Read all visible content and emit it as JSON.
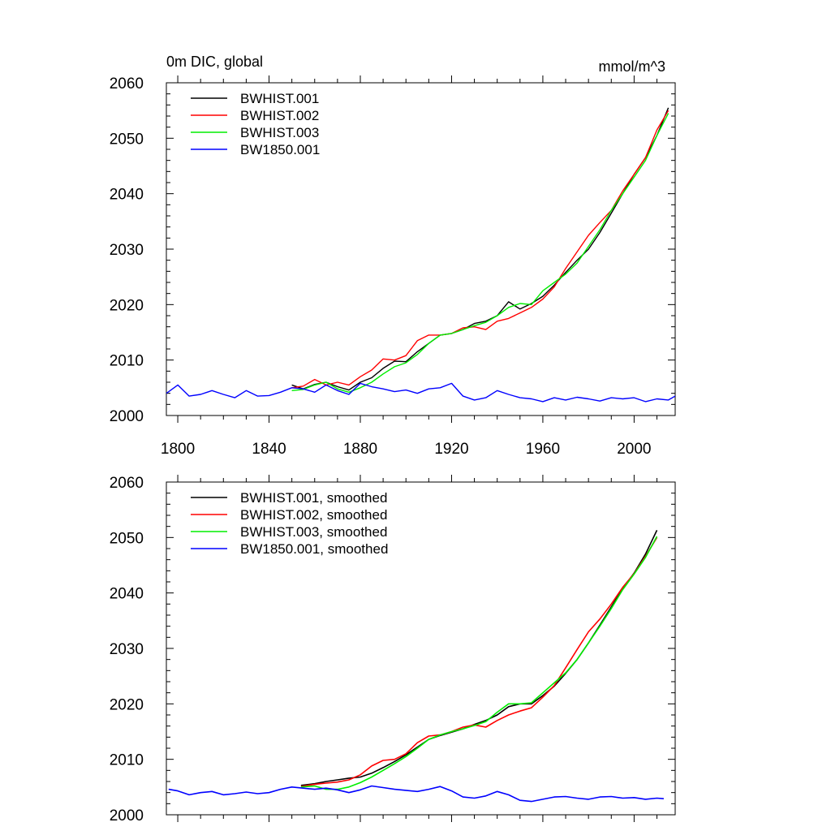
{
  "chart_data": [
    {
      "type": "line",
      "title_left": "0m DIC, global",
      "title_right": "mmol/m^3",
      "xlim": [
        1795,
        2018
      ],
      "ylim": [
        2000,
        2060
      ],
      "xticks": [
        1800,
        1840,
        1880,
        1920,
        1960,
        2000
      ],
      "xtick_labels": [
        "1800",
        "1840",
        "1880",
        "1920",
        "1960",
        "2000"
      ],
      "yticks": [
        2000,
        2010,
        2020,
        2030,
        2040,
        2050,
        2060
      ],
      "ytick_labels": [
        "2000",
        "2010",
        "2020",
        "2030",
        "2040",
        "2050",
        "2060"
      ],
      "legend": "top-left",
      "series": [
        {
          "name": "BWHIST.001",
          "color": "#000000",
          "x": [
            1850,
            1855,
            1860,
            1865,
            1870,
            1875,
            1880,
            1885,
            1890,
            1895,
            1900,
            1905,
            1910,
            1915,
            1920,
            1925,
            1930,
            1935,
            1940,
            1945,
            1950,
            1955,
            1960,
            1965,
            1970,
            1975,
            1980,
            1985,
            1990,
            1995,
            2000,
            2005,
            2010,
            2015
          ],
          "y": [
            2005.5,
            2004.8,
            2005.6,
            2006.0,
            2005.2,
            2004.6,
            2006.0,
            2006.8,
            2008.5,
            2009.8,
            2009.7,
            2011.5,
            2013.0,
            2014.5,
            2014.8,
            2015.5,
            2016.6,
            2017.0,
            2018.0,
            2020.5,
            2019.2,
            2020.2,
            2021.5,
            2023.5,
            2025.8,
            2028.0,
            2030.0,
            2033.0,
            2036.5,
            2040.0,
            2043.5,
            2046.5,
            2050.5,
            2055.5
          ]
        },
        {
          "name": "BWHIST.002",
          "color": "#ff0000",
          "x": [
            1850,
            1855,
            1860,
            1865,
            1870,
            1875,
            1880,
            1885,
            1890,
            1895,
            1900,
            1905,
            1910,
            1915,
            1920,
            1925,
            1930,
            1935,
            1940,
            1945,
            1950,
            1955,
            1960,
            1965,
            1970,
            1975,
            1980,
            1985,
            1990,
            1995,
            2000,
            2005,
            2010,
            2015
          ],
          "y": [
            2005.0,
            2005.3,
            2006.5,
            2005.5,
            2006.0,
            2005.5,
            2007.0,
            2008.2,
            2010.2,
            2010.0,
            2010.8,
            2013.5,
            2014.5,
            2014.5,
            2014.8,
            2015.8,
            2016.0,
            2015.5,
            2017.0,
            2017.5,
            2018.5,
            2019.5,
            2021.0,
            2023.2,
            2026.5,
            2029.5,
            2032.5,
            2034.8,
            2037.0,
            2040.5,
            2043.5,
            2046.5,
            2051.5,
            2055.0
          ]
        },
        {
          "name": "BWHIST.003",
          "color": "#00ee00",
          "x": [
            1850,
            1855,
            1860,
            1865,
            1870,
            1875,
            1880,
            1885,
            1890,
            1895,
            1900,
            1905,
            1910,
            1915,
            1920,
            1925,
            1930,
            1935,
            1940,
            1945,
            1950,
            1955,
            1960,
            1965,
            1970,
            1975,
            1980,
            1985,
            1990,
            1995,
            2000,
            2005,
            2010,
            2015
          ],
          "y": [
            2004.5,
            2004.7,
            2005.5,
            2006.0,
            2004.8,
            2004.2,
            2005.0,
            2006.0,
            2007.5,
            2008.8,
            2009.5,
            2011.0,
            2013.0,
            2014.5,
            2014.8,
            2015.5,
            2016.2,
            2016.8,
            2018.0,
            2019.5,
            2020.2,
            2020.0,
            2022.5,
            2024.0,
            2025.5,
            2027.5,
            2030.5,
            2033.5,
            2037.0,
            2040.0,
            2043.0,
            2046.0,
            2050.5,
            2054.5
          ]
        },
        {
          "name": "BW1850.001",
          "color": "#0000ff",
          "x": [
            1795,
            1800,
            1805,
            1810,
            1815,
            1820,
            1825,
            1830,
            1835,
            1840,
            1845,
            1850,
            1855,
            1860,
            1865,
            1870,
            1875,
            1880,
            1885,
            1890,
            1895,
            1900,
            1905,
            1910,
            1915,
            1920,
            1925,
            1930,
            1935,
            1940,
            1945,
            1950,
            1955,
            1960,
            1965,
            1970,
            1975,
            1980,
            1985,
            1990,
            1995,
            2000,
            2005,
            2010,
            2015,
            2018
          ],
          "y": [
            2004.0,
            2005.5,
            2003.5,
            2003.8,
            2004.5,
            2003.8,
            2003.2,
            2004.5,
            2003.5,
            2003.6,
            2004.2,
            2005.0,
            2004.8,
            2004.2,
            2005.5,
            2004.5,
            2003.8,
            2005.8,
            2005.2,
            2004.8,
            2004.3,
            2004.6,
            2004.0,
            2004.8,
            2005.0,
            2005.8,
            2003.5,
            2002.8,
            2003.2,
            2004.5,
            2003.8,
            2003.2,
            2003.0,
            2002.5,
            2003.2,
            2002.8,
            2003.3,
            2003.0,
            2002.6,
            2003.2,
            2003.0,
            2003.2,
            2002.5,
            2003.0,
            2002.8,
            2003.5
          ]
        }
      ]
    },
    {
      "type": "line",
      "xlim": [
        1795,
        2018
      ],
      "ylim": [
        2000,
        2060
      ],
      "yticks": [
        2000,
        2010,
        2020,
        2030,
        2040,
        2050,
        2060
      ],
      "ytick_labels": [
        "2000",
        "2010",
        "2020",
        "2030",
        "2040",
        "2050",
        "2060"
      ],
      "xticks": [
        1800,
        1840,
        1880,
        1920,
        1960,
        2000
      ],
      "legend": "top-left",
      "series": [
        {
          "name": "BWHIST.001, smoothed",
          "color": "#000000",
          "x": [
            1854,
            1860,
            1865,
            1870,
            1875,
            1880,
            1885,
            1890,
            1895,
            1900,
            1905,
            1910,
            1915,
            1920,
            1925,
            1930,
            1935,
            1940,
            1945,
            1950,
            1955,
            1960,
            1965,
            1970,
            1975,
            1980,
            1985,
            1990,
            1995,
            2000,
            2005,
            2010
          ],
          "y": [
            2005.3,
            2005.6,
            2006.0,
            2006.3,
            2006.6,
            2006.8,
            2007.5,
            2008.5,
            2009.6,
            2010.8,
            2012.2,
            2013.6,
            2014.3,
            2014.9,
            2015.5,
            2016.3,
            2017.0,
            2018.0,
            2019.5,
            2020.0,
            2020.0,
            2021.5,
            2023.2,
            2025.5,
            2028.0,
            2031.0,
            2034.2,
            2037.5,
            2040.8,
            2043.6,
            2047.0,
            2051.3
          ]
        },
        {
          "name": "BWHIST.002, smoothed",
          "color": "#ff0000",
          "x": [
            1854,
            1860,
            1865,
            1870,
            1875,
            1880,
            1885,
            1890,
            1895,
            1900,
            1905,
            1910,
            1915,
            1920,
            1925,
            1930,
            1935,
            1940,
            1945,
            1950,
            1955,
            1960,
            1965,
            1970,
            1975,
            1980,
            1985,
            1990,
            1995,
            2000,
            2005,
            2010
          ],
          "y": [
            2005.1,
            2005.5,
            2005.7,
            2005.9,
            2006.3,
            2007.2,
            2008.8,
            2009.8,
            2010.0,
            2011.0,
            2013.0,
            2014.2,
            2014.4,
            2015.0,
            2015.8,
            2016.2,
            2015.8,
            2017.0,
            2018.0,
            2018.7,
            2019.3,
            2021.2,
            2023.3,
            2026.5,
            2029.8,
            2033.0,
            2035.3,
            2038.0,
            2041.0,
            2043.5,
            2046.6,
            2050.0
          ]
        },
        {
          "name": "BWHIST.003, smoothed",
          "color": "#00ee00",
          "x": [
            1854,
            1860,
            1865,
            1870,
            1875,
            1880,
            1885,
            1890,
            1895,
            1900,
            1905,
            1910,
            1915,
            1920,
            1925,
            1930,
            1935,
            1940,
            1945,
            1950,
            1955,
            1960,
            1965,
            1970,
            1975,
            1980,
            1985,
            1990,
            1995,
            2000,
            2005,
            2010
          ],
          "y": [
            2005.0,
            2005.2,
            2004.6,
            2004.6,
            2005.0,
            2005.8,
            2006.8,
            2008.0,
            2009.2,
            2010.5,
            2012.0,
            2013.6,
            2014.4,
            2015.0,
            2015.5,
            2016.1,
            2016.8,
            2018.5,
            2020.0,
            2020.0,
            2020.2,
            2022.0,
            2023.8,
            2025.6,
            2028.0,
            2031.0,
            2034.0,
            2037.2,
            2040.6,
            2043.4,
            2046.4,
            2050.2
          ]
        },
        {
          "name": "BW1850.001, smoothed",
          "color": "#0000ff",
          "x": [
            1796,
            1800,
            1805,
            1810,
            1815,
            1820,
            1825,
            1830,
            1835,
            1840,
            1845,
            1850,
            1855,
            1860,
            1865,
            1870,
            1875,
            1880,
            1885,
            1890,
            1895,
            1900,
            1905,
            1910,
            1915,
            1920,
            1925,
            1930,
            1935,
            1940,
            1945,
            1950,
            1955,
            1960,
            1965,
            1970,
            1975,
            1980,
            1985,
            1990,
            1995,
            2000,
            2005,
            2010,
            2013
          ],
          "y": [
            2004.6,
            2004.3,
            2003.6,
            2004.0,
            2004.2,
            2003.6,
            2003.8,
            2004.1,
            2003.8,
            2004.0,
            2004.6,
            2005.0,
            2004.8,
            2004.6,
            2004.8,
            2004.5,
            2004.0,
            2004.5,
            2005.2,
            2004.9,
            2004.6,
            2004.4,
            2004.2,
            2004.6,
            2005.1,
            2004.3,
            2003.2,
            2003.0,
            2003.4,
            2004.2,
            2003.6,
            2002.6,
            2002.4,
            2002.8,
            2003.2,
            2003.3,
            2003.0,
            2002.8,
            2003.2,
            2003.3,
            2003.0,
            2003.1,
            2002.8,
            2003.0,
            2002.9
          ]
        }
      ]
    }
  ]
}
